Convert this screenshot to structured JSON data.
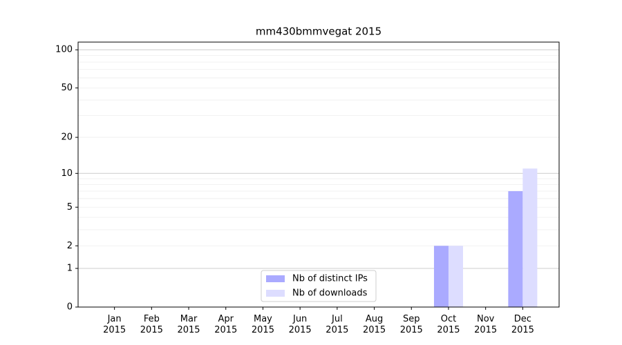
{
  "chart_data": {
    "type": "bar",
    "title": "mm430bmmvegat 2015",
    "categories": [
      "Jan 2015",
      "Feb 2015",
      "Mar 2015",
      "Apr 2015",
      "May 2015",
      "Jun 2015",
      "Jul 2015",
      "Aug 2015",
      "Sep 2015",
      "Oct 2015",
      "Nov 2015",
      "Dec 2015"
    ],
    "series": [
      {
        "name": "Nb of distinct IPs",
        "color": "#aaaaff",
        "values": [
          0,
          0,
          0,
          0,
          0,
          0,
          0,
          0,
          0,
          2,
          0,
          7
        ]
      },
      {
        "name": "Nb of downloads",
        "color": "#ddddff",
        "values": [
          0,
          0,
          0,
          0,
          0,
          0,
          0,
          0,
          0,
          2,
          0,
          11
        ]
      }
    ],
    "yscale": "log1p",
    "ylim": [
      0,
      115
    ],
    "yticks": [
      0,
      1,
      2,
      5,
      10,
      20,
      50,
      100
    ],
    "y_major_grid": [
      1,
      10,
      100
    ],
    "y_minor_grid": [
      2,
      3,
      4,
      5,
      6,
      7,
      8,
      9,
      20,
      30,
      40,
      50,
      60,
      70,
      80,
      90
    ],
    "legend": "lower center"
  }
}
